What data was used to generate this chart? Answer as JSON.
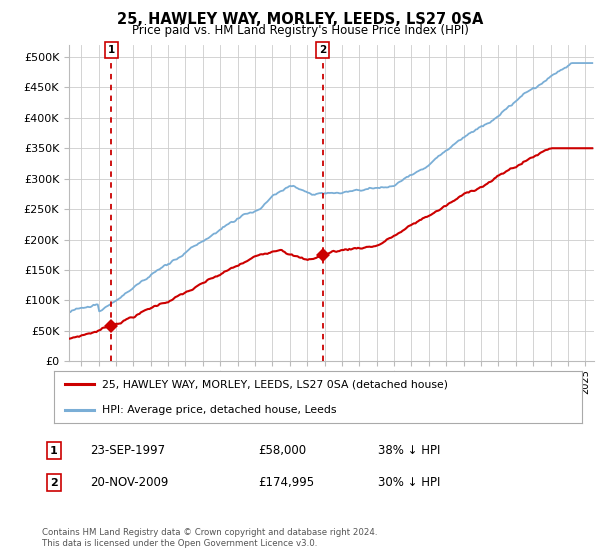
{
  "title1": "25, HAWLEY WAY, MORLEY, LEEDS, LS27 0SA",
  "title2": "Price paid vs. HM Land Registry's House Price Index (HPI)",
  "xlim_start": 1995.3,
  "xlim_end": 2025.5,
  "ylim": [
    0,
    520000
  ],
  "yticks": [
    0,
    50000,
    100000,
    150000,
    200000,
    250000,
    300000,
    350000,
    400000,
    450000,
    500000
  ],
  "ytick_labels": [
    "£0",
    "£50K",
    "£100K",
    "£150K",
    "£200K",
    "£250K",
    "£300K",
    "£350K",
    "£400K",
    "£450K",
    "£500K"
  ],
  "sale1_year": 1997.72,
  "sale1_price": 58000,
  "sale2_year": 2009.9,
  "sale2_price": 174995,
  "red_color": "#cc0000",
  "blue_color": "#7aaed6",
  "bg_color": "#ffffff",
  "grid_color": "#cccccc",
  "legend_label_red": "25, HAWLEY WAY, MORLEY, LEEDS, LS27 0SA (detached house)",
  "legend_label_blue": "HPI: Average price, detached house, Leeds",
  "ann1_label": "1",
  "ann1_date": "23-SEP-1997",
  "ann1_price": "£58,000",
  "ann1_hpi": "38% ↓ HPI",
  "ann2_label": "2",
  "ann2_date": "20-NOV-2009",
  "ann2_price": "£174,995",
  "ann2_hpi": "30% ↓ HPI",
  "copyright": "Contains HM Land Registry data © Crown copyright and database right 2024.\nThis data is licensed under the Open Government Licence v3.0."
}
